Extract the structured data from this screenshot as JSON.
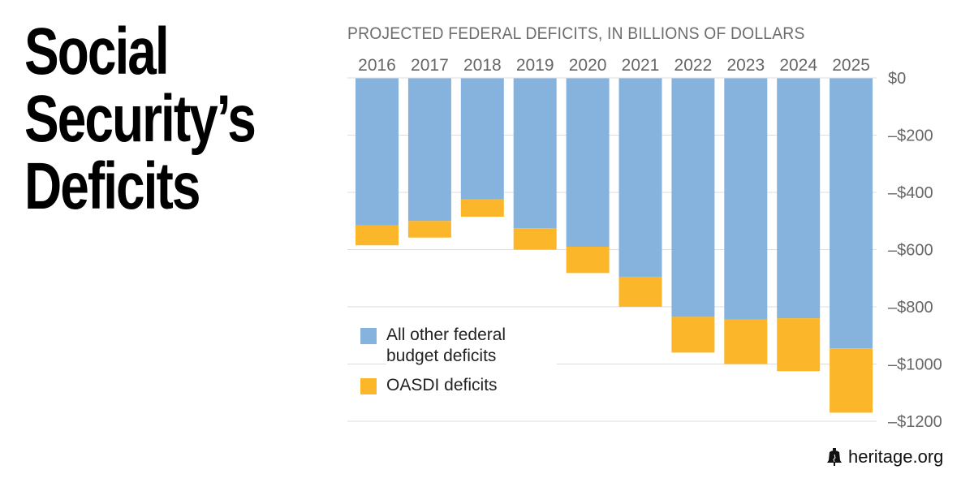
{
  "headline": {
    "lines": [
      "Social",
      "Security’s",
      "Deficits"
    ]
  },
  "subtitle": "PROJECTED FEDERAL DEFICITS, IN BILLIONS OF DOLLARS",
  "footer": {
    "brand": "heritage.org",
    "icon": "liberty-bell-icon"
  },
  "colors": {
    "other": "#85b3de",
    "oasdi": "#fbb62a",
    "grid": "#dddddd",
    "axis": "#777777"
  },
  "legend": [
    {
      "label": "All other federal budget deficits",
      "color": "#85b3de"
    },
    {
      "label": "OASDI deficits",
      "color": "#fbb62a"
    }
  ],
  "chart_data": {
    "type": "bar",
    "stacked": true,
    "title": "PROJECTED FEDERAL DEFICITS, IN BILLIONS OF DOLLARS",
    "categories": [
      "2016",
      "2017",
      "2018",
      "2019",
      "2020",
      "2021",
      "2022",
      "2023",
      "2024",
      "2025"
    ],
    "series": [
      {
        "name": "All other federal budget deficits",
        "values": [
          -515,
          -500,
          -425,
          -525,
          -590,
          -695,
          -835,
          -845,
          -840,
          -945
        ]
      },
      {
        "name": "OASDI deficits",
        "values": [
          -70,
          -58,
          -60,
          -75,
          -92,
          -105,
          -125,
          -155,
          -185,
          -225
        ]
      }
    ],
    "ylim": [
      -1200,
      0
    ],
    "yticks": [
      0,
      -200,
      -400,
      -600,
      -800,
      -1000,
      -1200
    ],
    "ytick_labels": [
      "$0",
      "–$200",
      "–$400",
      "–$600",
      "–$800",
      "–$1000",
      "–$1200"
    ],
    "xlabel": "",
    "ylabel": "",
    "grid": true,
    "legend_position": "bottom-left"
  }
}
